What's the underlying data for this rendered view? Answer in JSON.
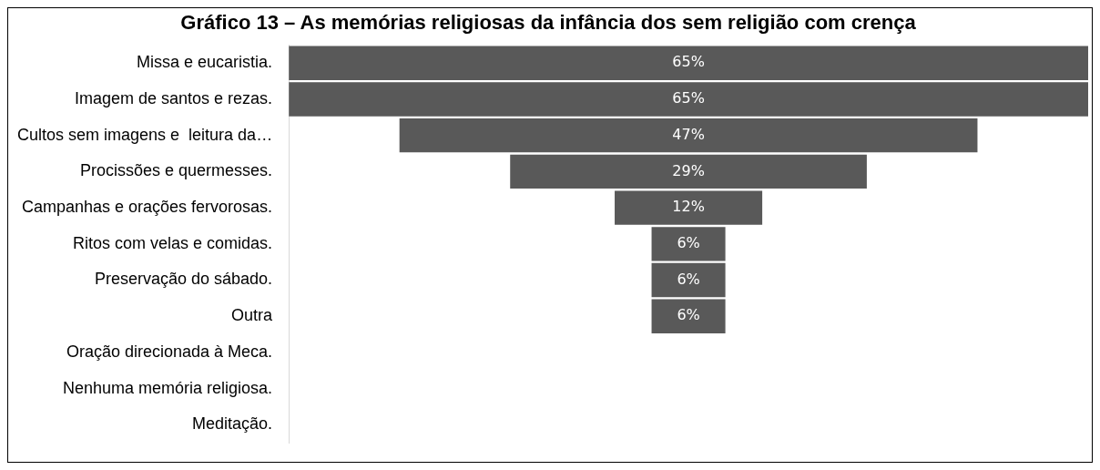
{
  "chart_data": {
    "type": "other",
    "title": "Gráfico 13 – As memórias religiosas da infância dos sem religião com crença",
    "categories": [
      "Missa e eucaristia.",
      "Imagem de santos e rezas.",
      "Cultos sem imagens e  leitura da…",
      "Procissões e quermesses.",
      "Campanhas e orações fervorosas.",
      "Ritos com velas e comidas.",
      "Preservação do sábado.",
      "Outra",
      "Oração direcionada à Meca.",
      "Nenhuma memória religiosa.",
      "Meditação."
    ],
    "values": [
      65,
      65,
      47,
      29,
      12,
      6,
      6,
      6,
      null,
      null,
      null
    ],
    "value_labels": [
      "65%",
      "65%",
      "47%",
      "29%",
      "12%",
      "6%",
      "6%",
      "6%",
      null,
      null,
      null
    ],
    "color": "#595959"
  }
}
